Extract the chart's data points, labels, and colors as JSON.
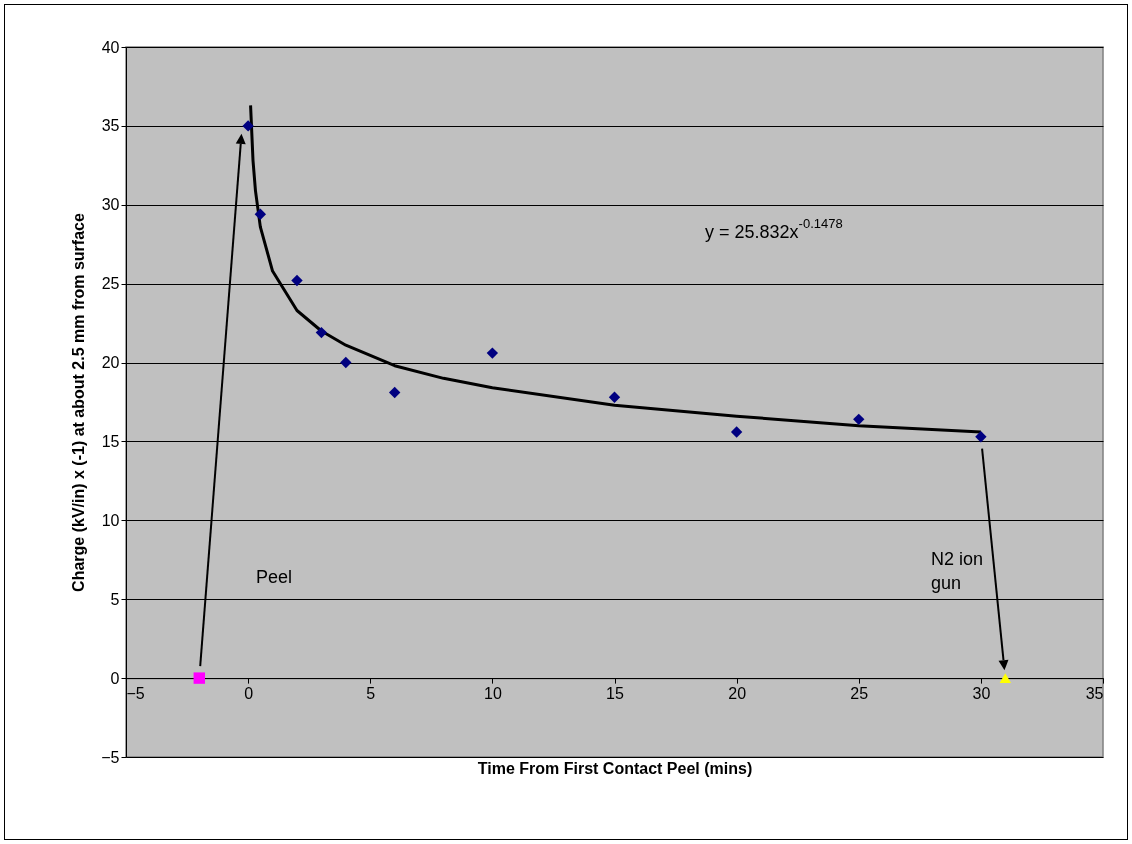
{
  "chart_data": {
    "type": "scatter",
    "xlabel": "Time From First Contact Peel (mins)",
    "ylabel": "Charge (kV/in) x (-1) at about 2.5 mm from surface",
    "series": [
      {
        "type": "scatter",
        "color": "#000080",
        "marker": "diamond",
        "x": [
          0,
          0.5,
          2,
          3,
          4,
          6,
          10,
          15,
          20,
          25,
          30
        ],
        "values": [
          35,
          29.4,
          25.2,
          21.9,
          20,
          18.1,
          20.6,
          17.8,
          15.6,
          16.4,
          15.3
        ]
      },
      {
        "type": "scatter",
        "color": "#ff00ff",
        "marker": "square",
        "x": [
          -2
        ],
        "values": [
          0
        ]
      },
      {
        "type": "scatter",
        "color": "#ffff00",
        "marker": "triangle",
        "x": [
          31
        ],
        "values": [
          0
        ]
      },
      {
        "type": "line",
        "color": "#000000",
        "marker": "none",
        "x": [
          0.1,
          0.2,
          0.3,
          0.5,
          1,
          2,
          3,
          4,
          6,
          8,
          10,
          15,
          20,
          25,
          30
        ],
        "values": [
          36.3,
          32.8,
          30.9,
          28.6,
          25.8,
          23.3,
          22,
          21.1,
          19.8,
          19,
          18.4,
          17.3,
          16.6,
          16,
          15.6
        ]
      }
    ],
    "annotations": [
      "Peel",
      "N2 ion gun",
      "y = 25.832x$^{-0.1478}$"
    ],
    "xlim": [
      -5,
      35
    ],
    "xticks": [
      -5,
      0,
      5,
      10,
      15,
      20,
      25,
      30,
      35
    ],
    "ylim": [
      -5,
      40
    ],
    "yticks": [
      -5,
      0,
      5,
      10,
      15,
      20,
      25,
      30,
      35,
      40
    ],
    "grid": "y"
  }
}
